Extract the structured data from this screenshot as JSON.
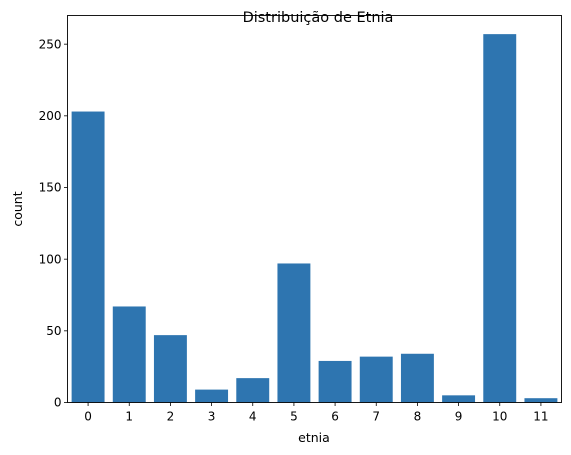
{
  "chart_data": {
    "type": "bar",
    "title": "Distribuição de Etnia",
    "xlabel": "etnia",
    "ylabel": "count",
    "categories": [
      "0",
      "1",
      "2",
      "3",
      "4",
      "5",
      "6",
      "7",
      "8",
      "9",
      "10",
      "11"
    ],
    "values": [
      203,
      67,
      47,
      9,
      17,
      97,
      29,
      32,
      34,
      5,
      257,
      3
    ],
    "ylim": [
      0,
      270
    ],
    "yticks": [
      0,
      50,
      100,
      150,
      200,
      250
    ],
    "grid": false,
    "bar_color": "#2e75b0"
  }
}
